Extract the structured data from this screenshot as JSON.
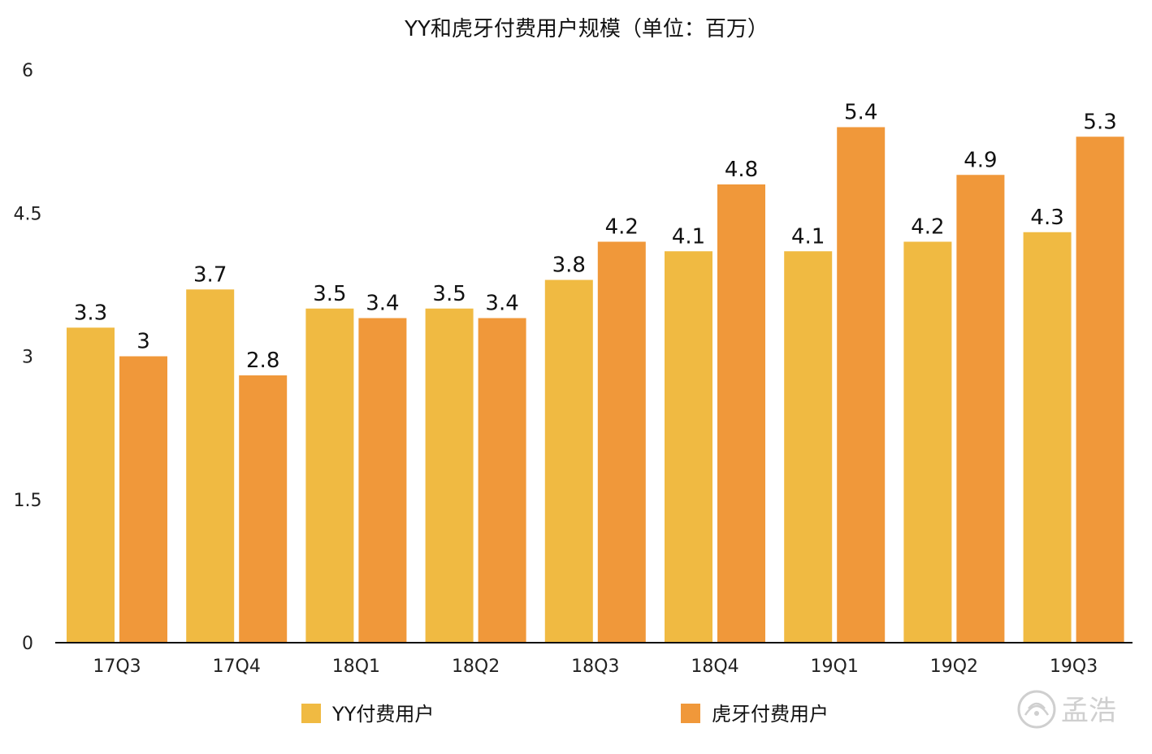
{
  "chart_data": {
    "type": "bar",
    "title": "YY和虎牙付费用户规模（单位：百万）",
    "categories": [
      "17Q3",
      "17Q4",
      "18Q1",
      "18Q2",
      "18Q3",
      "18Q4",
      "19Q1",
      "19Q2",
      "19Q3"
    ],
    "series": [
      {
        "name": "YY付费用户",
        "values": [
          3.3,
          3.7,
          3.5,
          3.5,
          3.8,
          4.1,
          4.1,
          4.2,
          4.3
        ],
        "color": "#F0BA42"
      },
      {
        "name": "虎牙付费用户",
        "values": [
          3,
          2.8,
          3.4,
          3.4,
          4.2,
          4.8,
          5.4,
          4.9,
          5.3
        ],
        "color": "#F0983A"
      }
    ],
    "ylim": [
      0,
      6
    ],
    "yticks": [
      "0",
      "1.5",
      "3",
      "4.5",
      "6"
    ],
    "grid": false,
    "legend": "bottom",
    "xlabel": "",
    "ylabel": ""
  },
  "watermark": {
    "text": "孟浩",
    "icon": "fingerprint-seal-icon"
  }
}
